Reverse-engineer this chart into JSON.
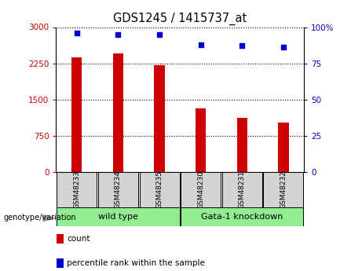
{
  "title": "GDS1245 / 1415737_at",
  "samples": [
    "GSM48233",
    "GSM48234",
    "GSM48235",
    "GSM48230",
    "GSM48231",
    "GSM48232"
  ],
  "bar_values": [
    2380,
    2460,
    2210,
    1320,
    1130,
    1020
  ],
  "percentile_values": [
    96,
    95,
    95,
    88,
    87,
    86
  ],
  "bar_color": "#cc0000",
  "dot_color": "#0000cc",
  "left_yticks": [
    0,
    750,
    1500,
    2250,
    3000
  ],
  "right_yticks": [
    0,
    25,
    50,
    75,
    100
  ],
  "left_ylim": [
    0,
    3000
  ],
  "right_ylim": [
    0,
    100
  ],
  "legend_count_label": "count",
  "legend_pct_label": "percentile rank within the sample",
  "genotype_label": "genotype/variation",
  "bg_xtick": "#d3d3d3",
  "bg_group": "#90ee90",
  "tick_label_color_left": "#cc0000",
  "tick_label_color_right": "#0000cc",
  "wt_label": "wild type",
  "gk_label": "Gata-1 knockdown"
}
